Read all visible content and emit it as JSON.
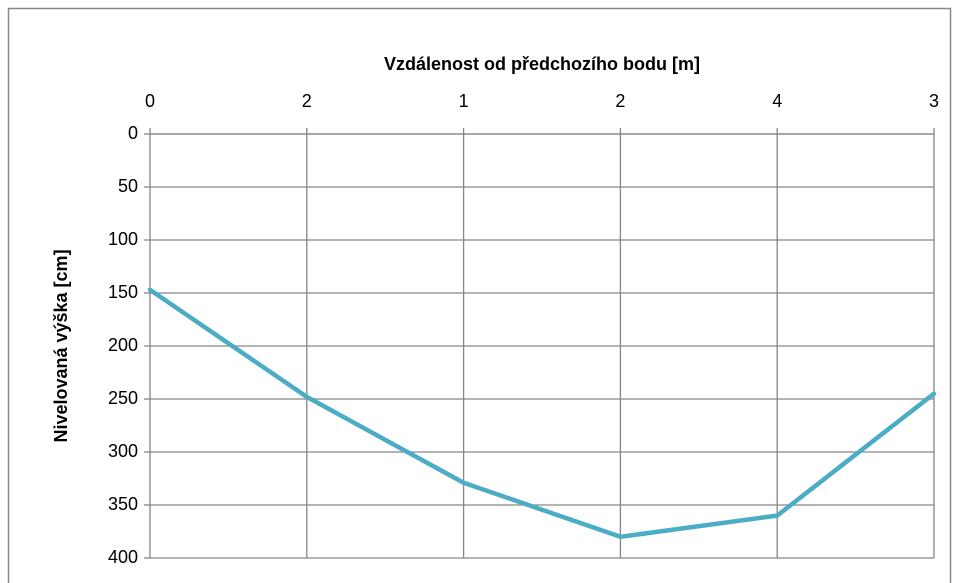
{
  "chart_data": {
    "type": "line",
    "xlabel": "Vzdálenost od předchozího bodu [m]",
    "ylabel": "Nivelovaná výška [cm]",
    "categories": [
      "0",
      "2",
      "1",
      "2",
      "4",
      "3"
    ],
    "values": [
      147,
      248,
      329,
      380,
      360,
      245
    ],
    "color": "#4bacc6",
    "ylim": [
      0,
      400
    ],
    "yticks": [
      0,
      50,
      100,
      150,
      200,
      250,
      300,
      350,
      400
    ],
    "y_inverted": true,
    "x_axis_position": "top",
    "grid": true
  }
}
